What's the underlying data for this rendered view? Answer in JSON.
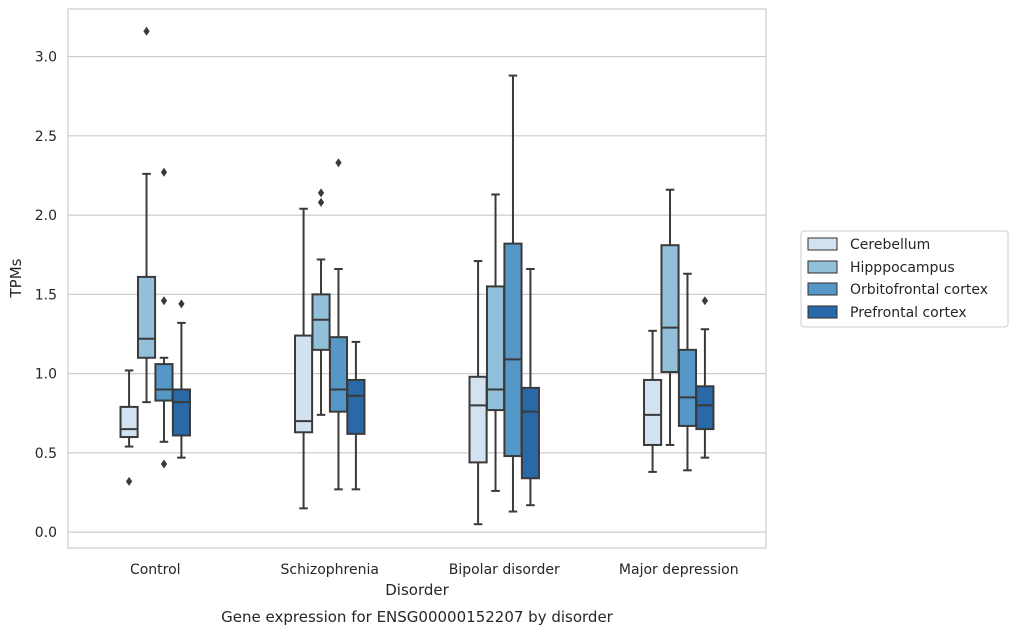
{
  "caption": "Gene expression for ENSG00000152207 by disorder",
  "chart_data": {
    "type": "box",
    "xlabel": "Disorder",
    "ylabel": "TPMs",
    "ylim": [
      -0.1,
      3.3
    ],
    "yticks": [
      0.0,
      0.5,
      1.0,
      1.5,
      2.0,
      2.5,
      3.0
    ],
    "ytick_labels": [
      "0.0",
      "0.5",
      "1.0",
      "1.5",
      "2.0",
      "2.5",
      "3.0"
    ],
    "grid": "horizontal",
    "legend_position": "right",
    "categories": [
      "Control",
      "Schizophrenia",
      "Bipolar disorder",
      "Major depression"
    ],
    "series": [
      {
        "name": "Cerebellum",
        "color": "#d3e2f1",
        "boxes": [
          {
            "whislo": 0.54,
            "q1": 0.6,
            "med": 0.65,
            "q3": 0.79,
            "whishi": 1.02,
            "fliers": [
              0.32
            ]
          },
          {
            "whislo": 0.15,
            "q1": 0.63,
            "med": 0.7,
            "q3": 1.24,
            "whishi": 2.04,
            "fliers": []
          },
          {
            "whislo": 0.05,
            "q1": 0.44,
            "med": 0.8,
            "q3": 0.98,
            "whishi": 1.71,
            "fliers": []
          },
          {
            "whislo": 0.38,
            "q1": 0.55,
            "med": 0.74,
            "q3": 0.96,
            "whishi": 1.27,
            "fliers": []
          }
        ]
      },
      {
        "name": "Hipppocampus",
        "color": "#92bfd9",
        "boxes": [
          {
            "whislo": 0.82,
            "q1": 1.1,
            "med": 1.22,
            "q3": 1.61,
            "whishi": 2.26,
            "fliers": [
              3.16
            ]
          },
          {
            "whislo": 0.74,
            "q1": 1.15,
            "med": 1.34,
            "q3": 1.5,
            "whishi": 1.72,
            "fliers": [
              2.08,
              2.14
            ]
          },
          {
            "whislo": 0.26,
            "q1": 0.77,
            "med": 0.9,
            "q3": 1.55,
            "whishi": 2.13,
            "fliers": []
          },
          {
            "whislo": 0.55,
            "q1": 1.01,
            "med": 1.29,
            "q3": 1.81,
            "whishi": 2.16,
            "fliers": []
          }
        ]
      },
      {
        "name": "Orbitofrontal cortex",
        "color": "#5597c6",
        "boxes": [
          {
            "whislo": 0.57,
            "q1": 0.83,
            "med": 0.9,
            "q3": 1.06,
            "whishi": 1.1,
            "fliers": [
              0.43,
              1.46,
              2.27
            ]
          },
          {
            "whislo": 0.27,
            "q1": 0.76,
            "med": 0.9,
            "q3": 1.23,
            "whishi": 1.66,
            "fliers": [
              2.33
            ]
          },
          {
            "whislo": 0.13,
            "q1": 0.48,
            "med": 1.09,
            "q3": 1.82,
            "whishi": 2.88,
            "fliers": []
          },
          {
            "whislo": 0.39,
            "q1": 0.67,
            "med": 0.85,
            "q3": 1.15,
            "whishi": 1.63,
            "fliers": []
          }
        ]
      },
      {
        "name": "Prefrontal cortex",
        "color": "#2a69a7",
        "boxes": [
          {
            "whislo": 0.47,
            "q1": 0.61,
            "med": 0.82,
            "q3": 0.9,
            "whishi": 1.32,
            "fliers": [
              1.44
            ]
          },
          {
            "whislo": 0.27,
            "q1": 0.62,
            "med": 0.86,
            "q3": 0.96,
            "whishi": 1.2,
            "fliers": []
          },
          {
            "whislo": 0.17,
            "q1": 0.34,
            "med": 0.76,
            "q3": 0.91,
            "whishi": 1.66,
            "fliers": []
          },
          {
            "whislo": 0.47,
            "q1": 0.65,
            "med": 0.8,
            "q3": 0.92,
            "whishi": 1.28,
            "fliers": [
              1.46
            ]
          }
        ]
      }
    ]
  }
}
